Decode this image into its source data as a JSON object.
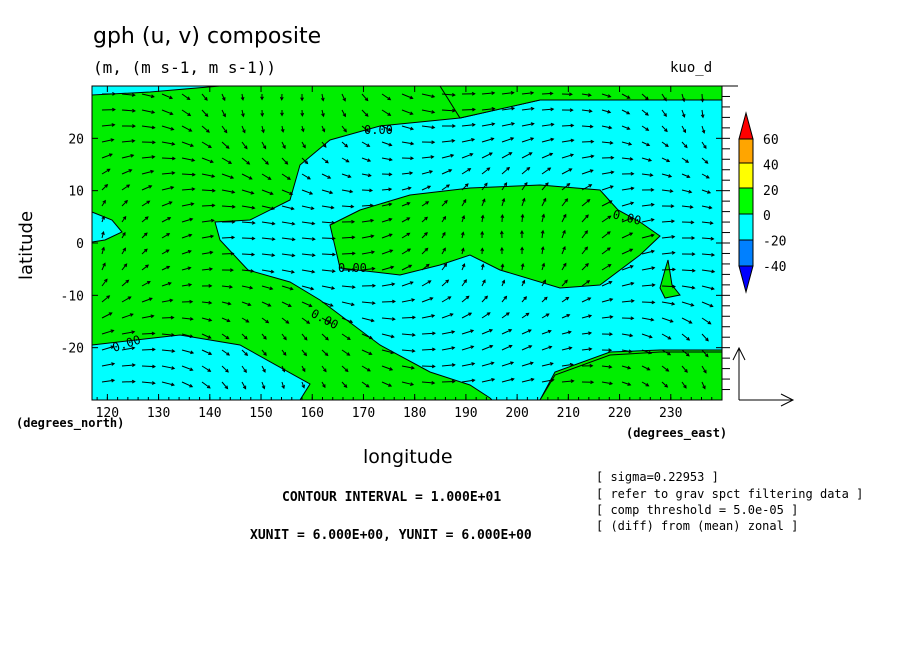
{
  "chart_data": {
    "type": "contour",
    "title": "gph (u, v) composite",
    "units_line": "(m, (m s-1, m s-1))",
    "tag": "kuo_d",
    "xlabel": "longitude",
    "ylabel": "latitude",
    "x_units": "(degrees_east)",
    "y_units": "(degrees_north)",
    "xlim": [
      117,
      240
    ],
    "ylim": [
      -30,
      30
    ],
    "x_ticks": [
      120,
      130,
      140,
      150,
      160,
      170,
      180,
      190,
      200,
      210,
      220,
      230
    ],
    "y_ticks": [
      20,
      10,
      0,
      -10,
      -20
    ],
    "contour_label": "0.00",
    "colorbar": {
      "levels": [
        "60",
        "40",
        "20",
        "0",
        "-20",
        "-40"
      ],
      "colors": [
        "#ff0000",
        "#ffa500",
        "#ffff00",
        "#00ff00",
        "#00ffff",
        "#0080ff",
        "#0000ff"
      ]
    },
    "regions_colors": {
      "positive": "#00ee00",
      "negative": "#00ffff"
    },
    "contour_interval": "CONTOUR INTERVAL = 1.000E+01",
    "vector_units": "XUNIT = 6.000E+00, YUNIT = 6.000E+00",
    "notes": [
      "[ sigma=0.22953 ]",
      "[ refer to grav spct filtering data ]",
      "[ comp threshold = 5.0e-05 ]",
      "[ (diff) from (mean) zonal ]"
    ]
  }
}
